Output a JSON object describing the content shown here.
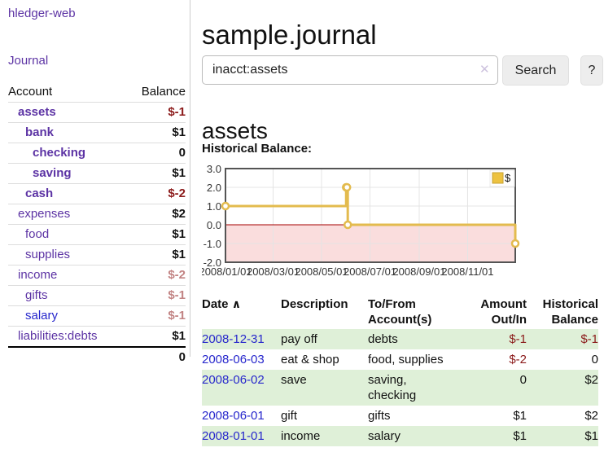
{
  "app_title": "hledger-web",
  "nav": {
    "journal": "Journal"
  },
  "sidebar": {
    "account_header": "Account",
    "balance_header": "Balance",
    "accounts": [
      {
        "name": "assets",
        "balance": "$-1"
      },
      {
        "name": "bank",
        "balance": "$1"
      },
      {
        "name": "checking",
        "balance": "0"
      },
      {
        "name": "saving",
        "balance": "$1"
      },
      {
        "name": "cash",
        "balance": "$-2"
      },
      {
        "name": "expenses",
        "balance": "$2"
      },
      {
        "name": "food",
        "balance": "$1"
      },
      {
        "name": "supplies",
        "balance": "$1"
      },
      {
        "name": "income",
        "balance": "$-2"
      },
      {
        "name": "gifts",
        "balance": "$-1"
      },
      {
        "name": "salary",
        "balance": "$-1"
      },
      {
        "name": "liabilities:debts",
        "balance": "$1"
      }
    ],
    "total": "0"
  },
  "main": {
    "title": "sample.journal",
    "search": {
      "value": "inacct:assets",
      "clear": "✕",
      "button": "Search",
      "help": "?"
    },
    "heading": "assets",
    "chart_title": "Historical Balance:"
  },
  "chart_data": {
    "type": "line",
    "step": true,
    "title": "Historical Balance:",
    "series": [
      {
        "name": "$",
        "points": [
          [
            "2008-01-01",
            1
          ],
          [
            "2008-06-01",
            2
          ],
          [
            "2008-06-02",
            2
          ],
          [
            "2008-06-03",
            0
          ],
          [
            "2008-12-31",
            -1
          ]
        ]
      }
    ],
    "x_range": [
      "2008-01-01",
      "2008-12-31"
    ],
    "ylim": [
      -2,
      3
    ],
    "y_ticks": [
      {
        "v": 3,
        "label": "3.0"
      },
      {
        "v": 2,
        "label": "2.0"
      },
      {
        "v": 1,
        "label": "1.0"
      },
      {
        "v": 0,
        "label": "0.0"
      },
      {
        "v": -1,
        "label": "-1.0"
      },
      {
        "v": -2,
        "label": "-2.0"
      }
    ],
    "x_ticks": [
      {
        "t": "2008-01-01",
        "label": "2008/01/01"
      },
      {
        "t": "2008-03-01",
        "label": "2008/03/01"
      },
      {
        "t": "2008-05-01",
        "label": "2008/05/01"
      },
      {
        "t": "2008-07-01",
        "label": "2008/07/01"
      },
      {
        "t": "2008-09-01",
        "label": "2008/09/01"
      },
      {
        "t": "2008-11-01",
        "label": "2008/11/01"
      }
    ],
    "legend": {
      "label": "$",
      "position": "top-right"
    },
    "grid": true,
    "colors": {
      "line": "#e3bb4e",
      "marker_fill": "#ffffff",
      "legend_fill": "#edc240",
      "legend_border": "#c7a232",
      "negative_region": "#fadddd",
      "zero_line": "#a40000",
      "grid": "#e4e4e4",
      "border": "#545454",
      "tick_text": "#333333"
    }
  },
  "register": {
    "headers": {
      "date": "Date",
      "description": "Description",
      "accounts": "To/From Account(s)",
      "amount": "Amount Out/In",
      "balance": "Historical Balance"
    },
    "sort_indicator": "∧",
    "rows": [
      {
        "date": "2008-12-31",
        "description": "pay off",
        "accounts": "debts",
        "amount": "$-1",
        "balance": "$-1"
      },
      {
        "date": "2008-06-03",
        "description": "eat & shop",
        "accounts": "food, supplies",
        "amount": "$-2",
        "balance": "0"
      },
      {
        "date": "2008-06-02",
        "description": "save",
        "accounts": "saving, checking",
        "amount": "0",
        "balance": "$2"
      },
      {
        "date": "2008-06-01",
        "description": "gift",
        "accounts": "gifts",
        "amount": "$1",
        "balance": "$2"
      },
      {
        "date": "2008-01-01",
        "description": "income",
        "accounts": "salary",
        "amount": "$1",
        "balance": "$1"
      }
    ]
  }
}
